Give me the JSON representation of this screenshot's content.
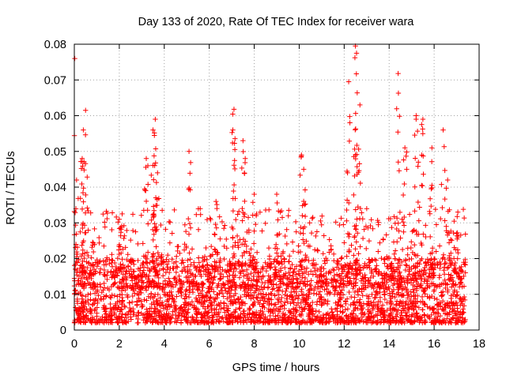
{
  "chart_data": {
    "type": "scatter",
    "title": "Day 133 of 2020, Rate Of TEC Index for receiver wara",
    "xlabel": "GPS time / hours",
    "ylabel": "ROTI / TECUs",
    "xlim": [
      0,
      18
    ],
    "ylim": [
      0,
      0.08
    ],
    "xticks": [
      "0",
      "2",
      "4",
      "6",
      "8",
      "10",
      "12",
      "14",
      "16",
      "18"
    ],
    "yticks": [
      "0",
      "0.01",
      "0.02",
      "0.03",
      "0.04",
      "0.05",
      "0.06",
      "0.07",
      "0.08"
    ],
    "grid": true,
    "marker": "+",
    "color": "#ff0000",
    "data_range_hours": [
      0,
      17.4
    ],
    "bulk_range": [
      0.002,
      0.02
    ],
    "peaks": [
      {
        "x": 0.02,
        "y": 0.076
      },
      {
        "x": 0.1,
        "y": 0.042
      },
      {
        "x": 0.4,
        "y": 0.056
      },
      {
        "x": 0.5,
        "y": 0.0615
      },
      {
        "x": 0.35,
        "y": 0.048
      },
      {
        "x": 2.0,
        "y": 0.031
      },
      {
        "x": 3.2,
        "y": 0.048
      },
      {
        "x": 3.5,
        "y": 0.056
      },
      {
        "x": 3.6,
        "y": 0.059
      },
      {
        "x": 3.7,
        "y": 0.044
      },
      {
        "x": 5.1,
        "y": 0.05
      },
      {
        "x": 6.3,
        "y": 0.036
      },
      {
        "x": 7.1,
        "y": 0.0618
      },
      {
        "x": 7.05,
        "y": 0.056
      },
      {
        "x": 7.5,
        "y": 0.053
      },
      {
        "x": 7.6,
        "y": 0.048
      },
      {
        "x": 8.0,
        "y": 0.038
      },
      {
        "x": 9.0,
        "y": 0.038
      },
      {
        "x": 10.1,
        "y": 0.049
      },
      {
        "x": 10.2,
        "y": 0.045
      },
      {
        "x": 12.2,
        "y": 0.0695
      },
      {
        "x": 12.15,
        "y": 0.044
      },
      {
        "x": 12.5,
        "y": 0.0795
      },
      {
        "x": 12.55,
        "y": 0.0775
      },
      {
        "x": 12.5,
        "y": 0.049
      },
      {
        "x": 12.7,
        "y": 0.063
      },
      {
        "x": 14.4,
        "y": 0.0718
      },
      {
        "x": 14.7,
        "y": 0.051
      },
      {
        "x": 15.2,
        "y": 0.06
      },
      {
        "x": 15.5,
        "y": 0.059
      },
      {
        "x": 15.3,
        "y": 0.047
      },
      {
        "x": 15.9,
        "y": 0.051
      },
      {
        "x": 16.4,
        "y": 0.056
      },
      {
        "x": 16.6,
        "y": 0.042
      },
      {
        "x": 17.0,
        "y": 0.027
      }
    ]
  }
}
